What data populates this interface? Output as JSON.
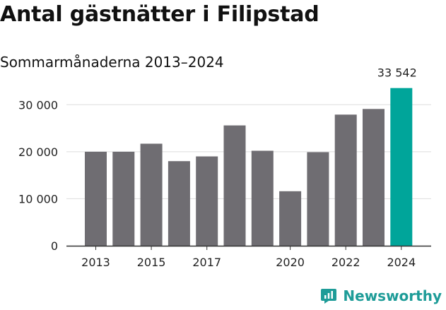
{
  "header": {
    "title": "Antal gästnätter i Filipstad",
    "subtitle": "Sommarmånaderna 2013–2024"
  },
  "brand": {
    "name": "Newsworthy",
    "icon": "newsworthy-logo-icon",
    "color": "#1e9c98"
  },
  "colors": {
    "bar": "#6f6d72",
    "highlight": "#00a59a",
    "gridline": "#dddddd",
    "axis": "#333333"
  },
  "chart_data": {
    "type": "bar",
    "title": "Antal gästnätter i Filipstad",
    "subtitle": "Sommarmånaderna 2013–2024",
    "xlabel": "",
    "ylabel": "",
    "categories": [
      "2013",
      "2014",
      "2015",
      "2016",
      "2017",
      "2018",
      "2019",
      "2020",
      "2021",
      "2022",
      "2023",
      "2024"
    ],
    "values": [
      20000,
      20000,
      21700,
      18000,
      19000,
      25600,
      20200,
      11600,
      19900,
      27900,
      29100,
      33542
    ],
    "highlight_index": 11,
    "data_labels": [
      {
        "index": 11,
        "text": "33 542"
      }
    ],
    "ylim": [
      0,
      35000
    ],
    "yticks": [
      0,
      10000,
      20000,
      30000
    ],
    "ytick_labels": [
      "0",
      "10 000",
      "20 000",
      "30 000"
    ],
    "xtick_labels": [
      "2013",
      "2015",
      "2017",
      "2020",
      "2022",
      "2024"
    ],
    "xtick_indices": [
      0,
      2,
      4,
      7,
      9,
      11
    ],
    "grid": true,
    "legend": false
  }
}
